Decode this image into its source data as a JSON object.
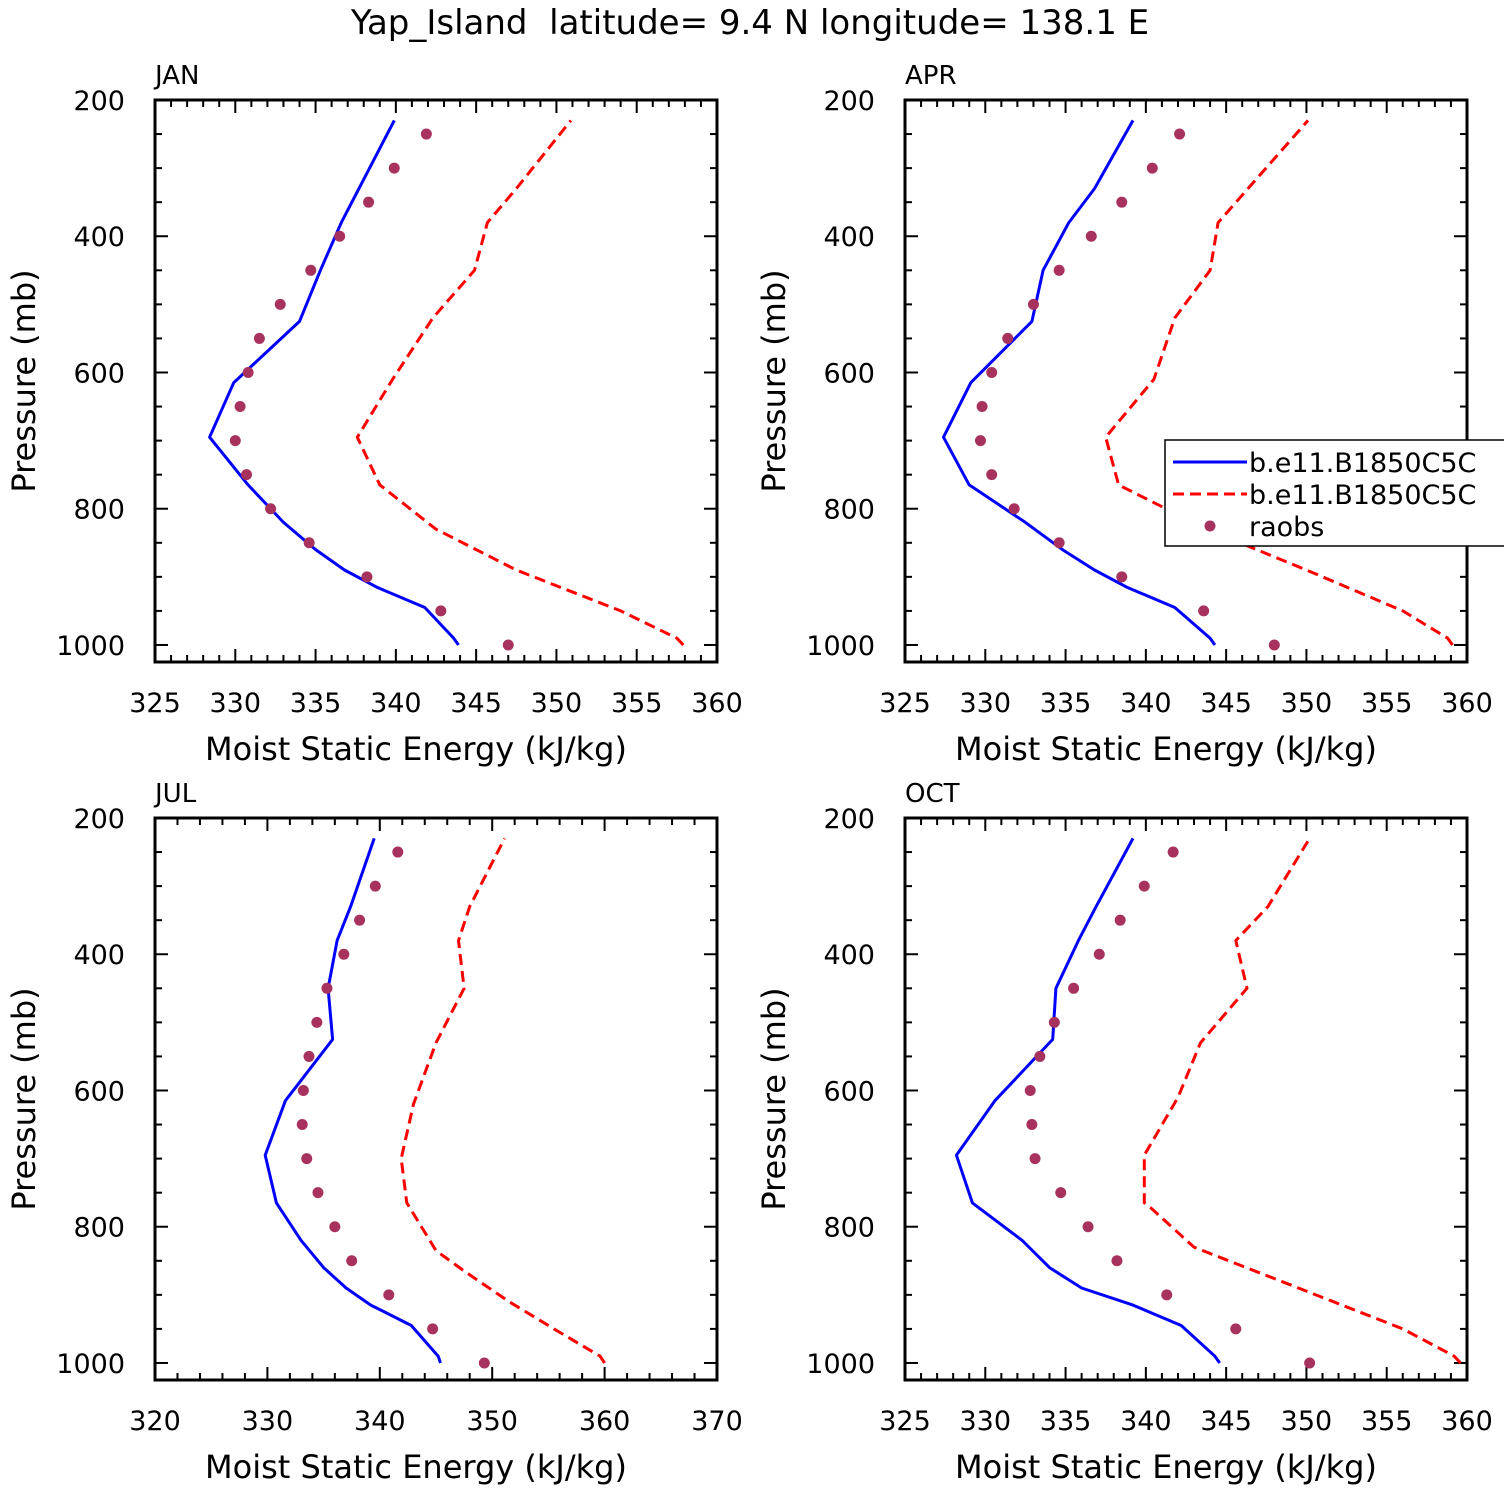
{
  "chart_data": {
    "type": "line",
    "title": "Yap_Island  latitude= 9.4 N longitude= 138.1 E",
    "xlabel": "Moist Static Energy (kJ/kg)",
    "ylabel": "Pressure (mb)",
    "legend": {
      "placement": "panel APR, middle-right",
      "entries": [
        {
          "label": "b.e11.B1850C5C",
          "style": "solid",
          "color": "#0000ff"
        },
        {
          "label": "b.e11.B1850C5C",
          "style": "dashed",
          "color": "#ff0000"
        },
        {
          "label": "raobs",
          "style": "dots",
          "color": "#a8325e"
        }
      ]
    },
    "panels": [
      {
        "label": "JAN",
        "xlim": [
          325,
          360
        ],
        "xticks": [
          325,
          330,
          335,
          340,
          345,
          350,
          355,
          360
        ],
        "ylim": [
          1025,
          200
        ],
        "yticks": [
          200,
          400,
          600,
          800,
          1000
        ],
        "series": [
          {
            "name": "b.e11.B1850C5C",
            "style": "solid",
            "pressure": [
              1000,
              990,
              945,
              915,
              890,
              860,
              820,
              765,
              695,
              615,
              525,
              450,
              380,
              230
            ],
            "mse": [
              343.9,
              343.6,
              341.8,
              338.8,
              336.8,
              335.0,
              333.0,
              330.8,
              328.4,
              329.9,
              334.0,
              335.3,
              336.6,
              339.9
            ]
          },
          {
            "name": "b.e11.B1850C5C",
            "style": "dashed",
            "pressure": [
              1000,
              990,
              950,
              890,
              830,
              765,
              695,
              610,
              520,
              450,
              380,
              330,
              230
            ],
            "mse": [
              357.9,
              357.5,
              354.0,
              347.5,
              342.5,
              339.0,
              337.6,
              339.8,
              342.3,
              344.9,
              345.7,
              347.5,
              350.9
            ],
            "color": "#ff0000"
          },
          {
            "name": "raobs",
            "style": "dots",
            "pressure": [
              250,
              300,
              350,
              400,
              450,
              500,
              550,
              600,
              650,
              700,
              750,
              800,
              850,
              900,
              950,
              1000
            ],
            "mse": [
              341.9,
              339.9,
              338.3,
              336.5,
              334.7,
              332.8,
              331.5,
              330.8,
              330.3,
              330.0,
              330.7,
              332.2,
              334.6,
              338.2,
              342.8,
              347.0
            ]
          }
        ]
      },
      {
        "label": "APR",
        "xlim": [
          325,
          360
        ],
        "xticks": [
          325,
          330,
          335,
          340,
          345,
          350,
          355,
          360
        ],
        "ylim": [
          1025,
          200
        ],
        "yticks": [
          200,
          400,
          600,
          800,
          1000
        ],
        "series": [
          {
            "name": "b.e11.B1850C5C",
            "style": "solid",
            "pressure": [
              1000,
              990,
              945,
              915,
              890,
              860,
              820,
              765,
              695,
              615,
              525,
              450,
              380,
              330,
              230
            ],
            "mse": [
              344.3,
              344.0,
              341.8,
              338.8,
              336.8,
              334.8,
              332.5,
              329.0,
              327.4,
              329.1,
              332.9,
              333.6,
              335.2,
              336.8,
              339.2
            ]
          },
          {
            "name": "b.e11.B1850C5C",
            "style": "dashed",
            "pressure": [
              1000,
              990,
              950,
              890,
              830,
              765,
              695,
              610,
              520,
              450,
              380,
              230
            ],
            "mse": [
              359.1,
              358.8,
              356.0,
              350.0,
              343.8,
              338.3,
              337.5,
              340.5,
              341.8,
              344.0,
              344.5,
              350.1
            ]
          },
          {
            "name": "raobs",
            "style": "dots",
            "pressure": [
              250,
              300,
              350,
              400,
              450,
              500,
              550,
              600,
              650,
              700,
              750,
              800,
              850,
              900,
              950,
              1000
            ],
            "mse": [
              342.1,
              340.4,
              338.5,
              336.6,
              334.6,
              333.0,
              331.4,
              330.4,
              329.8,
              329.7,
              330.4,
              331.8,
              334.6,
              338.5,
              343.6,
              348.0
            ]
          }
        ]
      },
      {
        "label": "JUL",
        "xlim": [
          320,
          370
        ],
        "xticks": [
          320,
          330,
          340,
          350,
          360,
          370
        ],
        "ylim": [
          1025,
          200
        ],
        "yticks": [
          200,
          400,
          600,
          800,
          1000
        ],
        "series": [
          {
            "name": "b.e11.B1850C5C",
            "style": "solid",
            "pressure": [
              1000,
              990,
              945,
              915,
              890,
              860,
              820,
              765,
              695,
              615,
              525,
              450,
              380,
              330,
              230
            ],
            "mse": [
              345.4,
              345.2,
              342.8,
              339.2,
              337.0,
              335.0,
              333.0,
              330.8,
              329.8,
              331.6,
              335.8,
              335.4,
              336.2,
              337.4,
              339.5
            ]
          },
          {
            "name": "b.e11.B1850C5C",
            "style": "dashed",
            "pressure": [
              1000,
              990,
              950,
              910,
              865,
              835,
              765,
              700,
              620,
              530,
              450,
              380,
              330,
              230
            ],
            "mse": [
              360.0,
              359.6,
              355.5,
              351.5,
              347.5,
              345.0,
              342.4,
              341.9,
              343.0,
              345.0,
              347.5,
              347.0,
              348.0,
              351.1
            ]
          },
          {
            "name": "raobs",
            "style": "dots",
            "pressure": [
              250,
              300,
              350,
              400,
              450,
              500,
              550,
              600,
              650,
              700,
              750,
              800,
              850,
              900,
              950,
              1000
            ],
            "mse": [
              341.6,
              339.6,
              338.2,
              336.8,
              335.3,
              334.4,
              333.7,
              333.2,
              333.1,
              333.5,
              334.5,
              336.0,
              337.5,
              340.8,
              344.7,
              349.3
            ]
          }
        ]
      },
      {
        "label": "OCT",
        "xlim": [
          325,
          360
        ],
        "xticks": [
          325,
          330,
          335,
          340,
          345,
          350,
          355,
          360
        ],
        "ylim": [
          1025,
          200
        ],
        "yticks": [
          200,
          400,
          600,
          800,
          1000
        ],
        "series": [
          {
            "name": "b.e11.B1850C5C",
            "style": "solid",
            "pressure": [
              1000,
              990,
              945,
              915,
              890,
              860,
              820,
              765,
              695,
              615,
              525,
              450,
              380,
              330,
              230
            ],
            "mse": [
              344.6,
              344.3,
              342.2,
              339.2,
              336.0,
              334.0,
              332.3,
              329.2,
              328.2,
              330.6,
              334.2,
              334.4,
              335.8,
              336.9,
              339.2
            ]
          },
          {
            "name": "b.e11.B1850C5C",
            "style": "dashed",
            "pressure": [
              1000,
              990,
              950,
              890,
              830,
              770,
              765,
              695,
              610,
              530,
              450,
              380,
              330,
              230
            ],
            "mse": [
              359.6,
              359.2,
              356.0,
              349.5,
              343.0,
              340.2,
              339.9,
              339.9,
              342.0,
              343.4,
              346.3,
              345.6,
              347.6,
              350.2
            ]
          },
          {
            "name": "raobs",
            "style": "dots",
            "pressure": [
              250,
              300,
              350,
              400,
              450,
              500,
              550,
              600,
              650,
              700,
              750,
              800,
              850,
              900,
              950,
              1000
            ],
            "mse": [
              341.7,
              339.9,
              338.4,
              337.1,
              335.5,
              334.3,
              333.4,
              332.8,
              332.9,
              333.1,
              334.7,
              336.4,
              338.2,
              341.3,
              345.6,
              350.2
            ]
          }
        ]
      }
    ]
  }
}
